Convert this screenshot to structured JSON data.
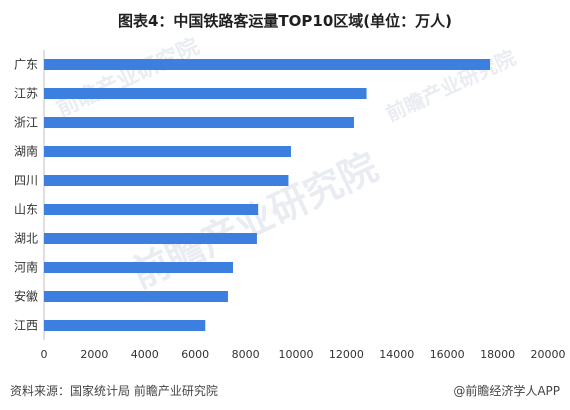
{
  "title": "图表4：中国铁路客运量TOP10区域(单位：万人)",
  "footer": {
    "source": "资料来源：国家统计局 前瞻产业研究院",
    "brand": "@前瞻经济学人APP"
  },
  "watermarks": [
    "前瞻产业研究院",
    "前瞻产业研究院",
    "前瞻产业研究院"
  ],
  "colors": {
    "bar": "#3d7fde",
    "axis": "#bfbfbf",
    "text": "#333333"
  },
  "chart_data": {
    "type": "bar",
    "orientation": "horizontal",
    "categories": [
      "广东",
      "江苏",
      "浙江",
      "湖南",
      "四川",
      "山东",
      "湖北",
      "河南",
      "安徽",
      "江西"
    ],
    "values": [
      17700,
      12800,
      12300,
      9800,
      9700,
      8500,
      8450,
      7500,
      7300,
      6400
    ],
    "xlim": [
      0,
      20000
    ],
    "xticks": [
      "0",
      "2000",
      "4000",
      "6000",
      "8000",
      "10000",
      "12000",
      "14000",
      "16000",
      "18000",
      "20000"
    ],
    "grid": false
  }
}
